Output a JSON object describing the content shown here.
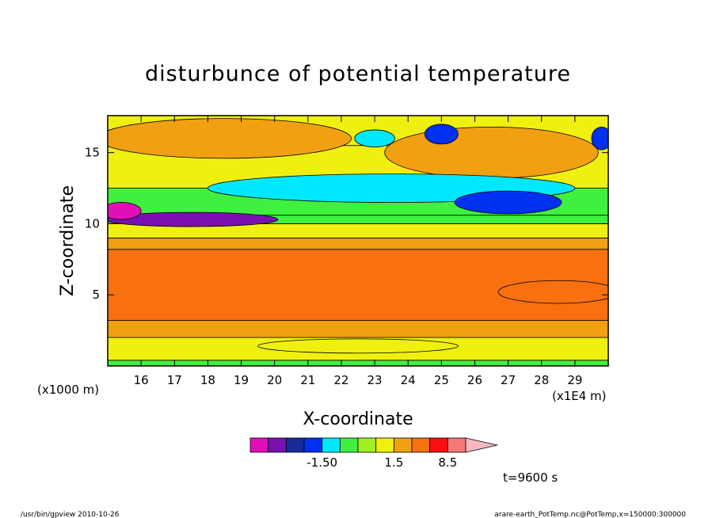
{
  "chart_data": {
    "type": "heatmap",
    "title": "disturbunce of potential temperature",
    "xlabel": "X-coordinate",
    "ylabel": "Z-coordinate",
    "x_unit": "(x1E4 m)",
    "y_unit": "(x1000 m)",
    "xlim": [
      15.0,
      30.0
    ],
    "ylim": [
      0.0,
      17.6
    ],
    "x_ticks": [
      16,
      17,
      18,
      19,
      20,
      21,
      22,
      23,
      24,
      25,
      26,
      27,
      28,
      29
    ],
    "y_ticks": [
      5,
      10,
      15
    ],
    "colorbar": {
      "labels": [
        {
          "text": "-1.50",
          "value": -1.5
        },
        {
          "text": "1.5",
          "value": 1.5
        },
        {
          "text": "8.5",
          "value": 8.5
        }
      ],
      "levels": [
        {
          "value": -6.0,
          "color": "#e010b8"
        },
        {
          "value": -3.5,
          "color": "#7a10b0"
        },
        {
          "value": -2.5,
          "color": "#1a2a9a"
        },
        {
          "value": -2.0,
          "color": "#0030f0"
        },
        {
          "value": -1.5,
          "color": "#00e8ff"
        },
        {
          "value": -0.5,
          "color": "#40f040"
        },
        {
          "value": 0.0,
          "color": "#a0f020"
        },
        {
          "value": 0.5,
          "color": "#f0f010"
        },
        {
          "value": 1.5,
          "color": "#f0a010"
        },
        {
          "value": 4.0,
          "color": "#f87010"
        },
        {
          "value": 6.5,
          "color": "#f81010"
        },
        {
          "value": 8.5,
          "color": "#f87878"
        },
        {
          "value": 11.0,
          "color": "#f8b8c0"
        }
      ]
    },
    "bands": [
      {
        "z_bottom": 0.0,
        "z_top": 0.4,
        "color": "#40f040"
      },
      {
        "z_bottom": 0.4,
        "z_top": 2.0,
        "color": "#f0f010"
      },
      {
        "z_bottom": 2.0,
        "z_top": 3.2,
        "color": "#f0a010"
      },
      {
        "z_bottom": 3.2,
        "z_top": 8.2,
        "color": "#f87010"
      },
      {
        "z_bottom": 8.2,
        "z_top": 9.0,
        "color": "#f0a010"
      },
      {
        "z_bottom": 9.0,
        "z_top": 10.0,
        "color": "#f0f010"
      },
      {
        "z_bottom": 10.0,
        "z_top": 10.6,
        "color": "#40f040"
      },
      {
        "z_bottom": 10.6,
        "z_top": 12.5,
        "color": "#40f040"
      },
      {
        "z_bottom": 12.5,
        "z_top": 15.5,
        "color": "#f0f010"
      },
      {
        "z_bottom": 15.5,
        "z_top": 17.6,
        "color": "#f0f010"
      }
    ],
    "features": [
      {
        "x_center": 18.5,
        "z_center": 16.0,
        "x_radius": 3.8,
        "z_radius": 1.4,
        "color": "#f0a010"
      },
      {
        "x_center": 26.5,
        "z_center": 15.0,
        "x_radius": 3.2,
        "z_radius": 1.8,
        "color": "#f0a010"
      },
      {
        "x_center": 23.5,
        "z_center": 12.5,
        "x_radius": 5.5,
        "z_radius": 1.0,
        "color": "#00e8ff"
      },
      {
        "x_center": 27.0,
        "z_center": 11.5,
        "x_radius": 1.6,
        "z_radius": 0.8,
        "color": "#0030f0"
      },
      {
        "x_center": 23.0,
        "z_center": 16.0,
        "x_radius": 0.6,
        "z_radius": 0.6,
        "color": "#00e8ff"
      },
      {
        "x_center": 25.0,
        "z_center": 16.3,
        "x_radius": 0.5,
        "z_radius": 0.7,
        "color": "#0030f0"
      },
      {
        "x_center": 29.8,
        "z_center": 16.0,
        "x_radius": 0.3,
        "z_radius": 0.8,
        "color": "#0030f0"
      },
      {
        "x_center": 17.5,
        "z_center": 10.3,
        "x_radius": 2.6,
        "z_radius": 0.5,
        "color": "#7a10b0"
      },
      {
        "x_center": 15.4,
        "z_center": 10.9,
        "x_radius": 0.6,
        "z_radius": 0.6,
        "color": "#e010b8"
      },
      {
        "x_center": 28.5,
        "z_center": 5.2,
        "x_radius": 1.8,
        "z_radius": 0.8,
        "color": "#f87010"
      },
      {
        "x_center": 22.5,
        "z_center": 1.4,
        "x_radius": 3.0,
        "z_radius": 0.5,
        "color": "#f0f010"
      }
    ],
    "time_label": "t=9600 s"
  },
  "footer": {
    "left": "/usr/bin/gpview   2010-10-26",
    "right": "arare-earth_PotTemp.nc@PotTemp,x=150000:300000"
  }
}
